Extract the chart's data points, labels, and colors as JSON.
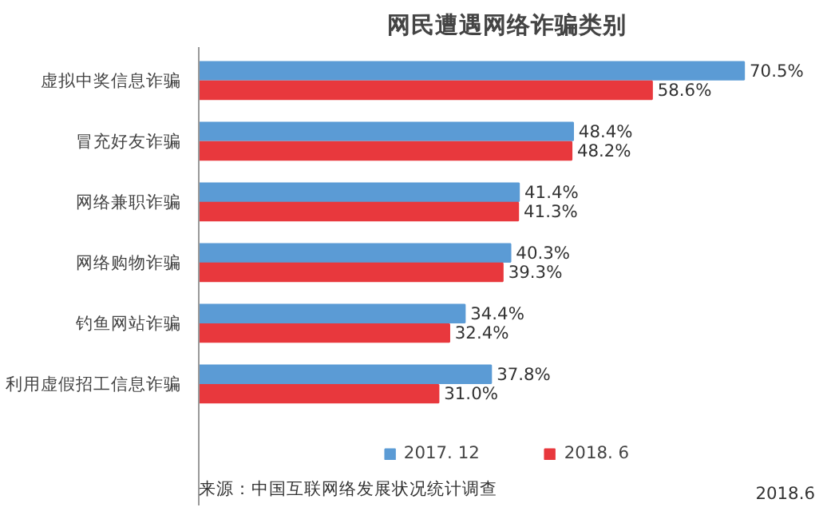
{
  "chart_data": {
    "type": "bar",
    "orientation": "horizontal",
    "title": "网民遭遇网络诈骗类别",
    "categories": [
      "虚拟中奖信息诈骗",
      "冒充好友诈骗",
      "网络兼职诈骗",
      "网络购物诈骗",
      "钓鱼网站诈骗",
      "利用虚假招工信息诈骗"
    ],
    "series": [
      {
        "name": "2017. 12",
        "color": "#5b9bd5",
        "values": [
          70.5,
          48.4,
          41.4,
          40.3,
          34.4,
          37.8
        ],
        "value_labels": [
          "70.5%",
          "48.4%",
          "41.4%",
          "40.3%",
          "34.4%",
          "37.8%"
        ]
      },
      {
        "name": "2018. 6",
        "color": "#e8383d",
        "values": [
          58.6,
          48.2,
          41.3,
          39.3,
          32.4,
          31.0
        ],
        "value_labels": [
          "58.6%",
          "48.2%",
          "41.3%",
          "39.3%",
          "32.4%",
          "31.0%"
        ]
      }
    ],
    "legend": "bottom",
    "grid": false,
    "annotations": [
      "来源：中国互联网络发展状况统计调查",
      "2018.6"
    ]
  }
}
